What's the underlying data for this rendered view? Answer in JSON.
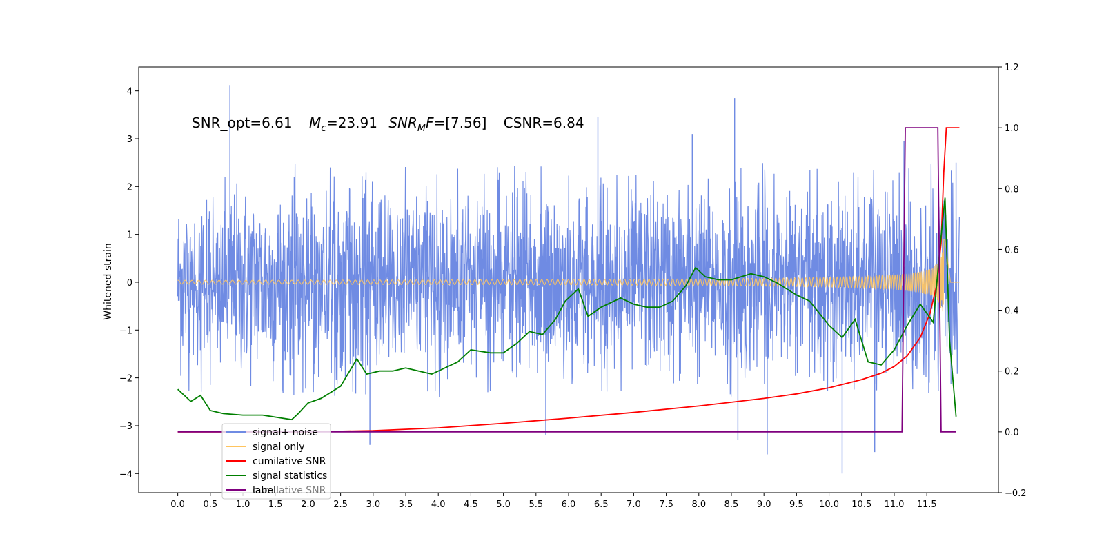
{
  "chart_data": {
    "type": "line",
    "annotation": {
      "snr_opt": "SNR_opt=6.61",
      "mc_sym": "M",
      "mc_sub": "c",
      "mc_val": "=23.91",
      "snrmf_sym": "SNR",
      "snrmf_sub": "M",
      "snrmf_f": "F",
      "snrmf_val": "=[7.56]",
      "csnr": "CSNR=6.84"
    },
    "ylabel_left": "Whitened strain",
    "ylabel_right": "",
    "xlim": [
      -0.6,
      12.6
    ],
    "ylim_left": [
      -4.4,
      4.5
    ],
    "ylim_right": [
      -0.2,
      1.2
    ],
    "x_ticks": [
      "0.0",
      "0.5",
      "1.0",
      "1.5",
      "2.0",
      "2.5",
      "3.0",
      "3.5",
      "4.0",
      "4.5",
      "5.0",
      "5.5",
      "6.0",
      "6.5",
      "7.0",
      "7.5",
      "8.0",
      "8.5",
      "9.0",
      "9.5",
      "10.0",
      "10.5",
      "11.0",
      "11.5"
    ],
    "y_ticks_left": [
      "−4",
      "−3",
      "−2",
      "−1",
      "0",
      "1",
      "2",
      "3",
      "4"
    ],
    "y_ticks_right": [
      "−0.2",
      "0.0",
      "0.2",
      "0.4",
      "0.6",
      "0.8",
      "1.0",
      "1.2"
    ],
    "legend": {
      "location": "lower-left",
      "entries": [
        {
          "label": "signal+ noise",
          "color": "#6f8be3"
        },
        {
          "label": "signal only",
          "color": "#ffc45e"
        },
        {
          "label": "cumilative SNR",
          "color": "#ff0000"
        },
        {
          "label": "signal statistics",
          "color": "#007f00"
        },
        {
          "label": "label",
          "color": "#7f007f"
        }
      ],
      "ghost_text": "cumilative SNR"
    },
    "series": [
      {
        "name": "signal+ noise",
        "axis": "left",
        "color": "#6f8be3",
        "description": "noise band roughly between −2.3 and +2.3 with spikes up to 4.1 and down to −4.0",
        "peaks_x": [
          0.8,
          8.55,
          6.45,
          7.9,
          11.15,
          11.95
        ],
        "peaks_y": [
          4.12,
          3.85,
          3.45,
          3.1,
          2.95,
          2.5
        ],
        "troughs_x": [
          10.2,
          9.05,
          10.7,
          2.95,
          5.65,
          8.6
        ],
        "troughs_y": [
          -4.0,
          -3.6,
          -3.55,
          -3.4,
          -3.2,
          -3.3
        ]
      },
      {
        "name": "signal only",
        "axis": "left",
        "color": "#ffc45e",
        "description": "chirp near 0, amplitude growing toward merger at ~11.75"
      },
      {
        "name": "cumilative SNR",
        "axis": "right",
        "color": "#ff0000",
        "x": [
          0.0,
          2.0,
          3.0,
          4.0,
          5.0,
          6.0,
          7.0,
          8.0,
          9.0,
          9.5,
          10.0,
          10.5,
          10.8,
          11.0,
          11.2,
          11.4,
          11.55,
          11.65,
          11.72,
          11.76,
          11.8,
          11.85,
          11.95,
          12.0
        ],
        "y": [
          0.0,
          0.0,
          0.004,
          0.013,
          0.028,
          0.045,
          0.064,
          0.085,
          0.11,
          0.125,
          0.145,
          0.172,
          0.193,
          0.215,
          0.25,
          0.31,
          0.39,
          0.48,
          0.62,
          0.85,
          1.0,
          1.0,
          1.0,
          1.0
        ]
      },
      {
        "name": "signal statistics",
        "axis": "right",
        "color": "#007f00",
        "x": [
          0.0,
          0.1,
          0.2,
          0.35,
          0.5,
          0.7,
          1.0,
          1.3,
          1.6,
          1.75,
          1.85,
          2.0,
          2.2,
          2.5,
          2.75,
          2.9,
          3.1,
          3.3,
          3.5,
          3.7,
          3.9,
          4.1,
          4.3,
          4.5,
          4.8,
          5.0,
          5.2,
          5.4,
          5.6,
          5.8,
          5.95,
          6.15,
          6.3,
          6.5,
          6.8,
          7.0,
          7.2,
          7.4,
          7.6,
          7.8,
          7.95,
          8.1,
          8.3,
          8.5,
          8.8,
          9.0,
          9.2,
          9.5,
          9.7,
          10.0,
          10.2,
          10.4,
          10.6,
          10.8,
          11.0,
          11.2,
          11.4,
          11.5,
          11.6,
          11.7,
          11.78,
          11.85,
          11.95
        ],
        "y": [
          0.14,
          0.12,
          0.1,
          0.12,
          0.07,
          0.06,
          0.055,
          0.055,
          0.045,
          0.04,
          0.06,
          0.095,
          0.11,
          0.15,
          0.24,
          0.19,
          0.2,
          0.2,
          0.21,
          0.2,
          0.19,
          0.21,
          0.23,
          0.27,
          0.26,
          0.26,
          0.29,
          0.33,
          0.32,
          0.37,
          0.43,
          0.47,
          0.38,
          0.41,
          0.44,
          0.42,
          0.41,
          0.41,
          0.43,
          0.48,
          0.54,
          0.51,
          0.5,
          0.5,
          0.52,
          0.51,
          0.49,
          0.45,
          0.43,
          0.35,
          0.31,
          0.37,
          0.23,
          0.22,
          0.27,
          0.35,
          0.42,
          0.39,
          0.36,
          0.6,
          0.77,
          0.3,
          0.05
        ]
      },
      {
        "name": "label",
        "axis": "right",
        "color": "#7f007f",
        "x": [
          0.0,
          11.12,
          11.17,
          11.67,
          11.72,
          11.95
        ],
        "y": [
          0.0,
          0.0,
          1.0,
          1.0,
          0.0,
          0.0
        ]
      }
    ]
  }
}
